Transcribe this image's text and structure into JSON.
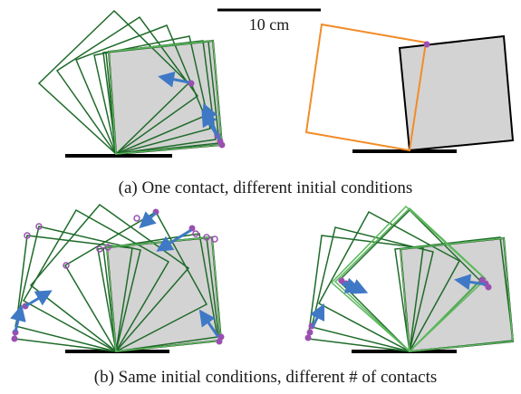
{
  "scale_bar": {
    "label": "10 cm"
  },
  "captions": {
    "a": "(a) One contact, different initial conditions",
    "b": "(b) Same initial conditions, different # of contacts"
  },
  "colors": {
    "trajectory_green": "#1f6b2a",
    "trajectory_light_green": "#5cb85c",
    "final_box_fill": "#d3d3d3",
    "final_box_stroke": "#000000",
    "orange_box": "#f28c28",
    "contact_purple": "#9b4fb0",
    "arrow_blue": "#3f79c6",
    "ground": "#000000"
  }
}
